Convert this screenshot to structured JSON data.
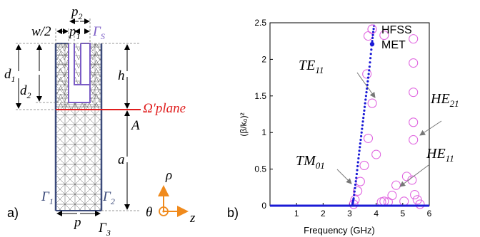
{
  "panel_a": {
    "label": "a)",
    "dims": {
      "w2": "w/2",
      "p1": "p",
      "p1_sub": "1",
      "p2": "p",
      "p2_sub": "2",
      "d1": "d",
      "d1_sub": "1",
      "d2": "d",
      "d2_sub": "2",
      "h": "h",
      "a": "a",
      "p": "p"
    },
    "boundaries": {
      "gs": "Γ",
      "gs_sub": "S",
      "g1": "Γ",
      "g1_sub": "1",
      "g2": "Γ",
      "g2_sub": "2",
      "g3": "Γ",
      "g3_sub": "3"
    },
    "plane_label": "Ω′plane",
    "point_A": "A",
    "axes": {
      "rho": "ρ",
      "z": "z",
      "theta": "θ"
    },
    "colors": {
      "structure": "#3b4a7a",
      "plane": "#e01e1e",
      "gamma_s": "#7b5cc6",
      "axes": "#f08a1c"
    }
  },
  "panel_b": {
    "label": "b)",
    "annotations": {
      "te11": "TE",
      "te11_sub": "11",
      "tm01": "TM",
      "tm01_sub": "01",
      "he21": "HE",
      "he21_sub": "21",
      "he11": "HE",
      "he11_sub": "11"
    }
  },
  "chart_data": {
    "type": "scatter",
    "xlabel": "Frequency (GHz)",
    "ylabel": "(β/k₀)²",
    "xlim": [
      0,
      6
    ],
    "ylim": [
      0,
      2.5
    ],
    "xticks": [
      "1",
      "2",
      "3",
      "4",
      "5",
      "6"
    ],
    "yticks": [
      "0",
      "0.5",
      "1",
      "1.5",
      "2",
      "2.5"
    ],
    "legend_position": "top-right",
    "series": [
      {
        "name": "HFSS",
        "marker": "open-circle",
        "color": "#e066e0",
        "points": [
          [
            3.15,
            0.02
          ],
          [
            3.2,
            0.08
          ],
          [
            3.3,
            0.2
          ],
          [
            3.4,
            0.33
          ],
          [
            3.55,
            0.55
          ],
          [
            3.7,
            0.92
          ],
          [
            3.65,
            1.8
          ],
          [
            3.7,
            2.32
          ],
          [
            3.85,
            1.4
          ],
          [
            4.0,
            0.7
          ],
          [
            4.2,
            0.05
          ],
          [
            4.3,
            2.33
          ],
          [
            4.3,
            0.06
          ],
          [
            4.45,
            0.05
          ],
          [
            4.6,
            0.14
          ],
          [
            4.75,
            0.28
          ],
          [
            5.05,
            0.06
          ],
          [
            5.15,
            0.4
          ],
          [
            5.35,
            0.35
          ],
          [
            5.4,
            2.28
          ],
          [
            5.4,
            1.95
          ],
          [
            5.4,
            1.55
          ],
          [
            5.4,
            1.14
          ],
          [
            5.4,
            0.9
          ],
          [
            5.45,
            0.15
          ],
          [
            5.55,
            0.08
          ],
          [
            5.65,
            0.02
          ]
        ]
      },
      {
        "name": "MET",
        "marker": "dot",
        "color": "#1a1ad6",
        "points": [
          [
            0,
            0
          ],
          [
            3.1,
            0
          ],
          [
            3.15,
            0.1
          ],
          [
            3.25,
            0.38
          ],
          [
            3.35,
            0.7
          ],
          [
            3.45,
            1.0
          ],
          [
            3.55,
            1.3
          ],
          [
            3.65,
            1.6
          ],
          [
            3.75,
            1.9
          ],
          [
            3.85,
            2.25
          ],
          [
            3.93,
            2.5
          ]
        ],
        "baseline": [
          [
            0,
            0
          ],
          [
            6,
            0
          ]
        ]
      }
    ]
  }
}
